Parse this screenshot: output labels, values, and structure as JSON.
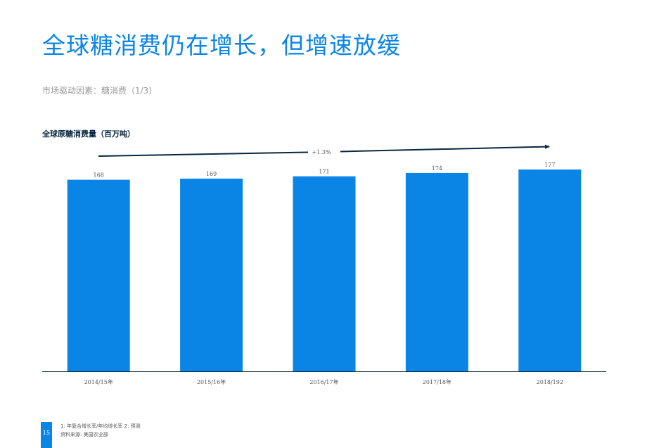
{
  "page": {
    "title": "全球糖消费仍在增长，但增速放缓",
    "subtitle": "市场驱动因素：糖消费（1/3）",
    "page_number": "15",
    "footnotes": [
      "1: 年复合增长率/年均增长率 2: 预测",
      "资料来源: 美国农业部"
    ]
  },
  "colors": {
    "accent": "#0a85e6",
    "bar": "#0a85e6",
    "dark": "#0b2740"
  },
  "chart_data": {
    "type": "bar",
    "title": "全球原糖消费量（百万吨）",
    "categories": [
      "2014/15年",
      "2015/16年",
      "2016/17年",
      "2017/18年",
      "2018/192"
    ],
    "values": [
      168,
      169,
      171,
      174,
      177
    ],
    "data_labels": [
      "168",
      "169",
      "171",
      "174",
      "177"
    ],
    "ylim": [
      0,
      177
    ],
    "xlabel": "",
    "ylabel": "",
    "annotation": "+1.3%",
    "grid": false,
    "legend": "none"
  }
}
